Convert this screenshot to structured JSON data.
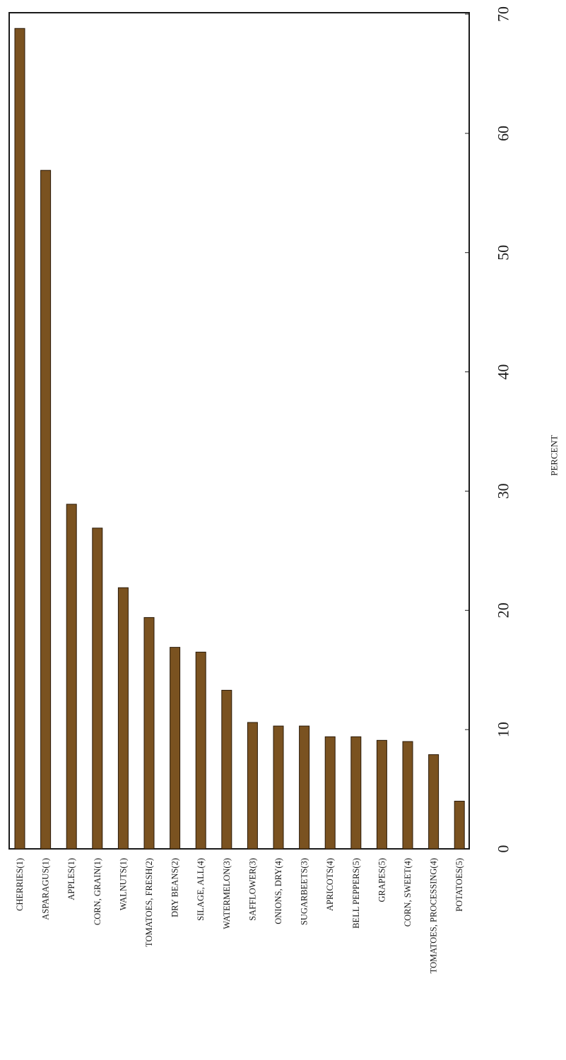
{
  "chart_data": {
    "type": "bar",
    "orientation": "vertical bars, page rotated (value axis along page height)",
    "categories": [
      "CHERRIES(1)",
      "ASPARAGUS(1)",
      "APPLES(1)",
      "CORN, GRAIN(1)",
      "WALNUTS(1)",
      "TOMATOES, FRESH(2)",
      "DRY BEANS(2)",
      "SILAGE, ALL(4)",
      "WATERMELON(3)",
      "SAFFLOWER(3)",
      "ONIONS, DRY(4)",
      "SUGARBEETS(3)",
      "APRICOTS(4)",
      "BELL PEPPERS(5)",
      "GRAPES(5)",
      "CORN, SWEET(4)",
      "TOMATOES, PROCESSING(4)",
      "POTATOES(5)"
    ],
    "values": [
      68.8,
      56.9,
      28.9,
      26.9,
      21.9,
      19.4,
      16.9,
      16.5,
      13.3,
      10.6,
      10.3,
      10.3,
      9.4,
      9.4,
      9.1,
      9.0,
      7.9,
      4.0
    ],
    "ylabel": "PERCENT",
    "ylim": [
      0,
      70
    ],
    "yticks": [
      0,
      10,
      20,
      30,
      40,
      50,
      60,
      70
    ],
    "grid": false,
    "bar_color": "#7a5220",
    "bar_edge_color": "#2a1a08"
  }
}
